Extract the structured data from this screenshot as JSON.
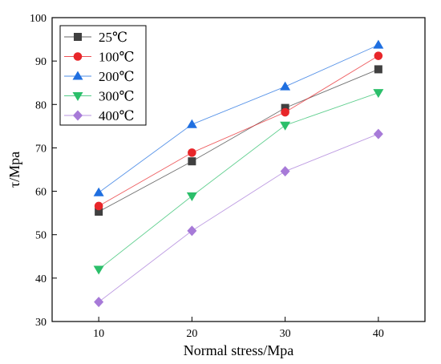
{
  "chart_data": {
    "type": "line",
    "title": "",
    "xlabel": "Normal stress/Mpa",
    "ylabel": "τ/Mpa",
    "x": [
      10,
      20,
      30,
      40
    ],
    "xlim": [
      5,
      45
    ],
    "ylim": [
      30,
      100
    ],
    "xticks": [
      10,
      20,
      30,
      40
    ],
    "yticks": [
      30,
      40,
      50,
      60,
      70,
      80,
      90,
      100
    ],
    "grid": false,
    "legend_position": "top-left",
    "series": [
      {
        "name": "25℃",
        "values": [
          55.3,
          66.9,
          79.2,
          88.1
        ],
        "color": "#404040",
        "marker": "square"
      },
      {
        "name": "100℃",
        "values": [
          56.6,
          68.9,
          78.2,
          91.2
        ],
        "color": "#e8262a",
        "marker": "circle"
      },
      {
        "name": "200℃",
        "values": [
          59.7,
          75.4,
          84.1,
          93.7
        ],
        "color": "#1f6fe0",
        "marker": "triangle-up"
      },
      {
        "name": "300℃",
        "values": [
          42.0,
          58.9,
          75.2,
          82.7
        ],
        "color": "#2bbf6a",
        "marker": "triangle-down"
      },
      {
        "name": "400℃",
        "values": [
          34.5,
          50.9,
          64.6,
          73.2
        ],
        "color": "#a77ad8",
        "marker": "diamond"
      }
    ]
  }
}
